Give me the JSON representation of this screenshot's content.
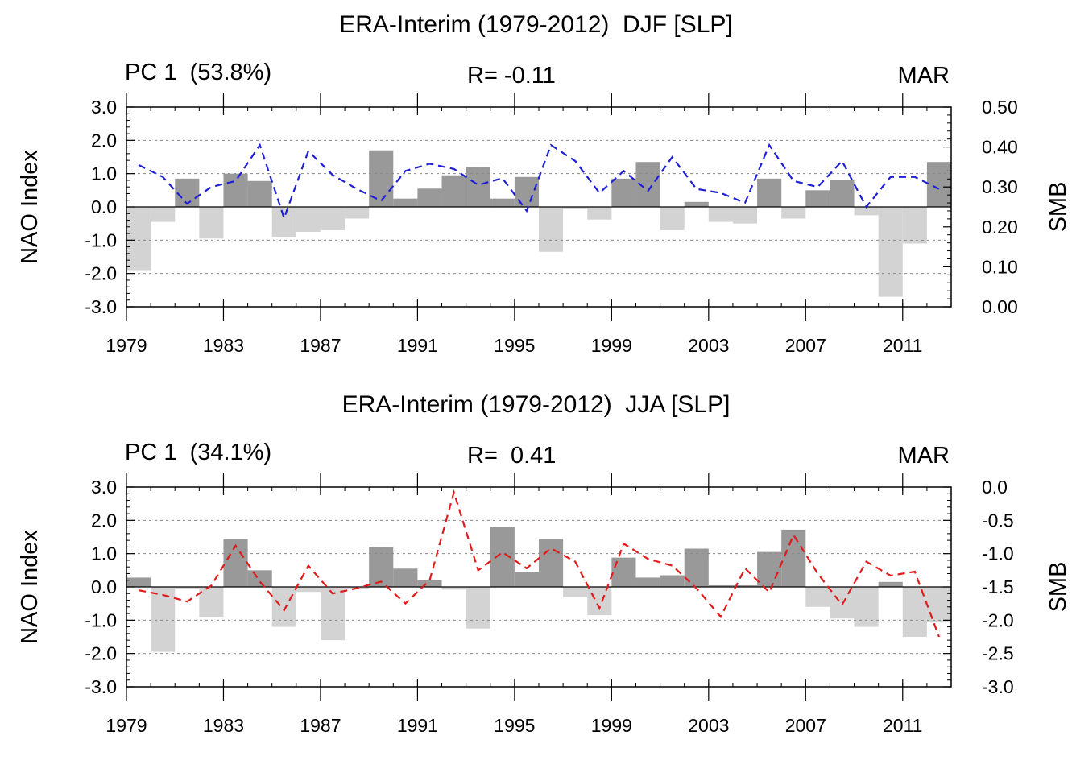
{
  "chart_data": [
    {
      "type": "bar",
      "title": "ERA-Interim (1979-2012)  DJF [SLP]",
      "subtitle_left": "PC 1  (53.8%)",
      "subtitle_center": "R= -0.11",
      "subtitle_right": "MAR",
      "ylabel": "NAO Index",
      "y2label": "SMB",
      "ylim": [
        -3.0,
        3.0
      ],
      "y2lim": [
        0.0,
        0.5
      ],
      "yticks": [
        "3.0",
        "2.0",
        "1.0",
        "0.0",
        "-1.0",
        "-2.0",
        "-3.0"
      ],
      "y2ticks": [
        "0.50",
        "0.40",
        "0.30",
        "0.20",
        "0.10",
        "0.00"
      ],
      "xticks": [
        "1979",
        "1983",
        "1987",
        "1991",
        "1995",
        "1999",
        "2003",
        "2007",
        "2011"
      ],
      "years": [
        1979,
        1980,
        1981,
        1982,
        1983,
        1984,
        1985,
        1986,
        1987,
        1988,
        1989,
        1990,
        1991,
        1992,
        1993,
        1994,
        1995,
        1996,
        1997,
        1998,
        1999,
        2000,
        2001,
        2002,
        2003,
        2004,
        2005,
        2006,
        2007,
        2008,
        2009,
        2010,
        2011,
        2012
      ],
      "series": [
        {
          "name": "NAO Index",
          "kind": "bar",
          "positive_color": "#999999",
          "negative_color": "#d3d3d3",
          "values": [
            -1.9,
            -0.45,
            0.85,
            -0.95,
            1.0,
            0.78,
            -0.9,
            -0.75,
            -0.7,
            -0.35,
            1.7,
            0.25,
            0.55,
            0.95,
            1.2,
            0.25,
            0.9,
            -1.35,
            -0.05,
            -0.38,
            0.85,
            1.35,
            -0.7,
            0.15,
            -0.45,
            -0.5,
            0.85,
            -0.35,
            0.5,
            0.82,
            -0.25,
            -2.7,
            -1.1,
            1.35
          ]
        },
        {
          "name": "SMB",
          "kind": "line",
          "color": "#1f1fd6",
          "axis": "right",
          "values": [
            0.355,
            0.325,
            0.258,
            0.3,
            0.315,
            0.405,
            0.222,
            0.39,
            0.33,
            0.295,
            0.265,
            0.34,
            0.358,
            0.345,
            0.305,
            0.322,
            0.24,
            0.405,
            0.365,
            0.285,
            0.34,
            0.29,
            0.375,
            0.295,
            0.285,
            0.26,
            0.405,
            0.315,
            0.3,
            0.365,
            0.25,
            0.325,
            0.325,
            0.295
          ]
        }
      ]
    },
    {
      "type": "bar",
      "title": "ERA-Interim (1979-2012)  JJA [SLP]",
      "subtitle_left": "PC 1  (34.1%)",
      "subtitle_center": "R=  0.41",
      "subtitle_right": "MAR",
      "ylabel": "NAO Index",
      "y2label": "SMB",
      "ylim": [
        -3.0,
        3.0
      ],
      "y2lim": [
        -3.0,
        0.0
      ],
      "yticks": [
        "3.0",
        "2.0",
        "1.0",
        "0.0",
        "-1.0",
        "-2.0",
        "-3.0"
      ],
      "y2ticks": [
        "0.0",
        "-0.5",
        "-1.0",
        "-1.5",
        "-2.0",
        "-2.5",
        "-3.0"
      ],
      "xticks": [
        "1979",
        "1983",
        "1987",
        "1991",
        "1995",
        "1999",
        "2003",
        "2007",
        "2011"
      ],
      "years": [
        1979,
        1980,
        1981,
        1982,
        1983,
        1984,
        1985,
        1986,
        1987,
        1988,
        1989,
        1990,
        1991,
        1992,
        1993,
        1994,
        1995,
        1996,
        1997,
        1998,
        1999,
        2000,
        2001,
        2002,
        2003,
        2004,
        2005,
        2006,
        2007,
        2008,
        2009,
        2010,
        2011,
        2012
      ],
      "series": [
        {
          "name": "NAO Index",
          "kind": "bar",
          "positive_color": "#999999",
          "negative_color": "#d3d3d3",
          "values": [
            0.28,
            -1.95,
            -0.05,
            -0.9,
            1.45,
            0.5,
            -1.2,
            -0.15,
            -1.6,
            -0.05,
            1.2,
            0.55,
            0.2,
            -0.08,
            -1.25,
            1.8,
            0.45,
            1.45,
            -0.3,
            -0.85,
            0.88,
            0.28,
            0.35,
            1.15,
            0.05,
            0.05,
            1.05,
            1.72,
            -0.6,
            -0.95,
            -1.2,
            0.15,
            -1.5,
            -1.05
          ]
        },
        {
          "name": "SMB",
          "kind": "line",
          "color": "#e01b1b",
          "axis": "right",
          "values": [
            -1.55,
            -1.62,
            -1.72,
            -1.48,
            -0.88,
            -1.42,
            -1.85,
            -1.18,
            -1.6,
            -1.52,
            -1.42,
            -1.75,
            -1.4,
            -0.08,
            -1.25,
            -0.98,
            -1.22,
            -0.92,
            -1.12,
            -1.82,
            -0.85,
            -1.08,
            -1.18,
            -1.52,
            -1.95,
            -1.22,
            -1.58,
            -0.72,
            -1.3,
            -1.77,
            -1.12,
            -1.33,
            -1.27,
            -2.25
          ]
        }
      ]
    }
  ]
}
